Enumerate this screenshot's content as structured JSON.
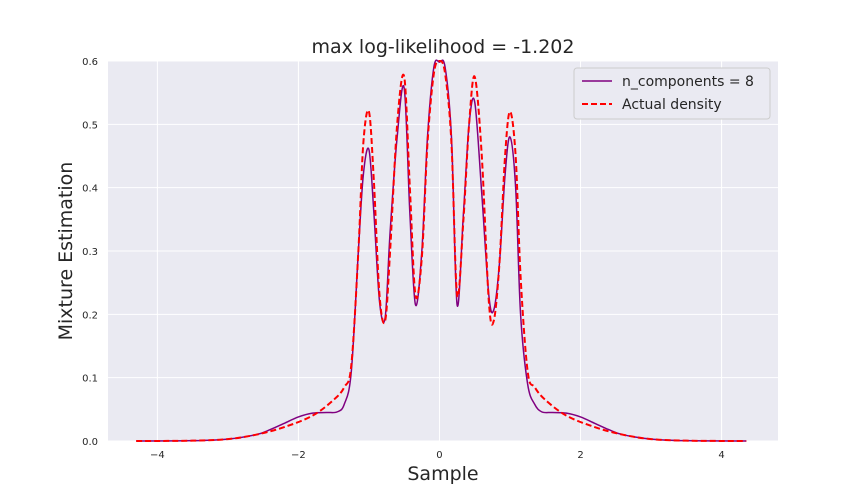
{
  "chart_data": {
    "type": "line",
    "title": "max log-likelihood = -1.202",
    "xlabel": "Sample",
    "ylabel": "Mixture Estimation",
    "xlim": [
      -4.7,
      4.8
    ],
    "ylim": [
      0,
      0.6
    ],
    "xticks": [
      -4,
      -2,
      0,
      2,
      4
    ],
    "yticks": [
      0.0,
      0.1,
      0.2,
      0.3,
      0.4,
      0.5,
      0.6
    ],
    "xtick_labels": [
      "−4",
      "−2",
      "0",
      "2",
      "4"
    ],
    "ytick_labels": [
      "0.0",
      "0.1",
      "0.2",
      "0.3",
      "0.4",
      "0.5",
      "0.6"
    ],
    "grid": true,
    "legend_position": "top-right",
    "colors": {
      "background": "#eaeaf2",
      "grid": "#ffffff",
      "estimate": "#800080",
      "actual": "#ff0000"
    },
    "series": [
      {
        "name": "n_components = 8",
        "style": "solid",
        "color": "#800080",
        "x": [
          -4.3,
          -3.5,
          -3.0,
          -2.6,
          -2.4,
          -2.2,
          -2.0,
          -1.8,
          -1.6,
          -1.45,
          -1.35,
          -1.25,
          -1.15,
          -1.08,
          -1.0,
          -0.93,
          -0.85,
          -0.77,
          -0.7,
          -0.6,
          -0.5,
          -0.42,
          -0.34,
          -0.25,
          -0.17,
          -0.08,
          0.0,
          0.08,
          0.17,
          0.25,
          0.34,
          0.42,
          0.5,
          0.6,
          0.7,
          0.77,
          0.85,
          0.93,
          1.0,
          1.08,
          1.15,
          1.25,
          1.35,
          1.45,
          1.6,
          1.8,
          2.0,
          2.2,
          2.4,
          2.6,
          3.0,
          3.5,
          4.35
        ],
        "y": [
          0.0,
          0.0005,
          0.003,
          0.01,
          0.018,
          0.028,
          0.038,
          0.044,
          0.045,
          0.046,
          0.058,
          0.11,
          0.3,
          0.42,
          0.46,
          0.36,
          0.22,
          0.195,
          0.33,
          0.48,
          0.557,
          0.36,
          0.215,
          0.3,
          0.48,
          0.59,
          0.598,
          0.59,
          0.48,
          0.215,
          0.36,
          0.5,
          0.535,
          0.39,
          0.23,
          0.207,
          0.28,
          0.42,
          0.48,
          0.4,
          0.2,
          0.09,
          0.058,
          0.046,
          0.045,
          0.044,
          0.038,
          0.028,
          0.018,
          0.01,
          0.003,
          0.0005,
          0.0
        ]
      },
      {
        "name": "Actual density",
        "style": "dashed",
        "color": "#ff0000",
        "x": [
          -4.3,
          -3.5,
          -3.0,
          -2.6,
          -2.2,
          -1.8,
          -1.5,
          -1.35,
          -1.25,
          -1.15,
          -1.08,
          -1.0,
          -0.93,
          -0.85,
          -0.77,
          -0.7,
          -0.6,
          -0.5,
          -0.42,
          -0.34,
          -0.25,
          -0.17,
          -0.08,
          0.0,
          0.08,
          0.17,
          0.25,
          0.34,
          0.42,
          0.5,
          0.6,
          0.7,
          0.77,
          0.85,
          0.93,
          1.0,
          1.08,
          1.15,
          1.25,
          1.35,
          1.5,
          1.8,
          2.2,
          2.6,
          3.0,
          3.5,
          4.35
        ],
        "y": [
          0.0,
          0.0005,
          0.003,
          0.01,
          0.022,
          0.04,
          0.065,
          0.085,
          0.12,
          0.3,
          0.47,
          0.52,
          0.41,
          0.23,
          0.19,
          0.3,
          0.5,
          0.575,
          0.4,
          0.23,
          0.29,
          0.47,
          0.58,
          0.6,
          0.58,
          0.47,
          0.23,
          0.35,
          0.5,
          0.575,
          0.45,
          0.22,
          0.19,
          0.28,
          0.45,
          0.52,
          0.45,
          0.26,
          0.11,
          0.085,
          0.065,
          0.04,
          0.022,
          0.01,
          0.003,
          0.0005,
          0.0
        ]
      }
    ]
  }
}
